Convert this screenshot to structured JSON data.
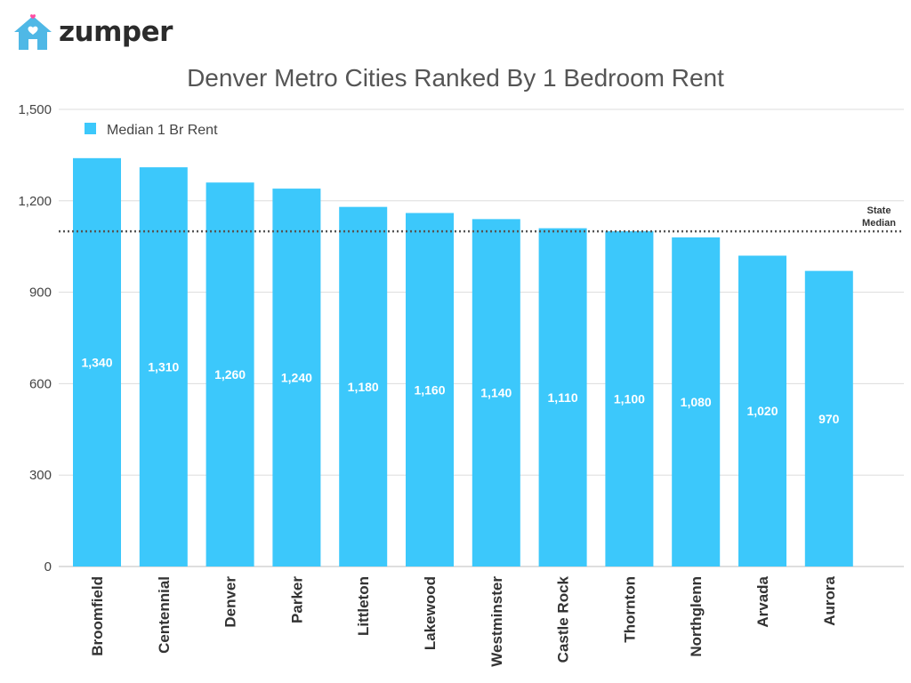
{
  "brand": {
    "name": "zumper",
    "accent": "#ff4fa3",
    "house_color": "#4fb8e6"
  },
  "chart_data": {
    "type": "bar",
    "title": "Denver Metro Cities Ranked By 1 Bedroom Rent",
    "categories": [
      "Broomfield",
      "Centennial",
      "Denver",
      "Parker",
      "Littleton",
      "Lakewood",
      "Westminster",
      "Castle Rock",
      "Thornton",
      "Northglenn",
      "Arvada",
      "Aurora"
    ],
    "series": [
      {
        "name": "Median 1 Br Rent",
        "color": "#3cc8fb",
        "values": [
          1340,
          1310,
          1260,
          1240,
          1180,
          1160,
          1140,
          1110,
          1100,
          1080,
          1020,
          970
        ],
        "labels": [
          "1,340",
          "1,310",
          "1,260",
          "1,240",
          "1,180",
          "1,160",
          "1,140",
          "1,110",
          "1,100",
          "1,080",
          "1,020",
          "970"
        ]
      }
    ],
    "ylim": [
      0,
      1500
    ],
    "yticks": [
      0,
      300,
      600,
      900,
      1200,
      1500
    ],
    "ytick_labels": [
      "0",
      "300",
      "600",
      "900",
      "1,200",
      "1,500"
    ],
    "reference_line": {
      "label_lines": [
        "State",
        "Median"
      ],
      "value": 1100,
      "style": "dotted"
    },
    "grid": true,
    "legend_position": "top-left"
  }
}
